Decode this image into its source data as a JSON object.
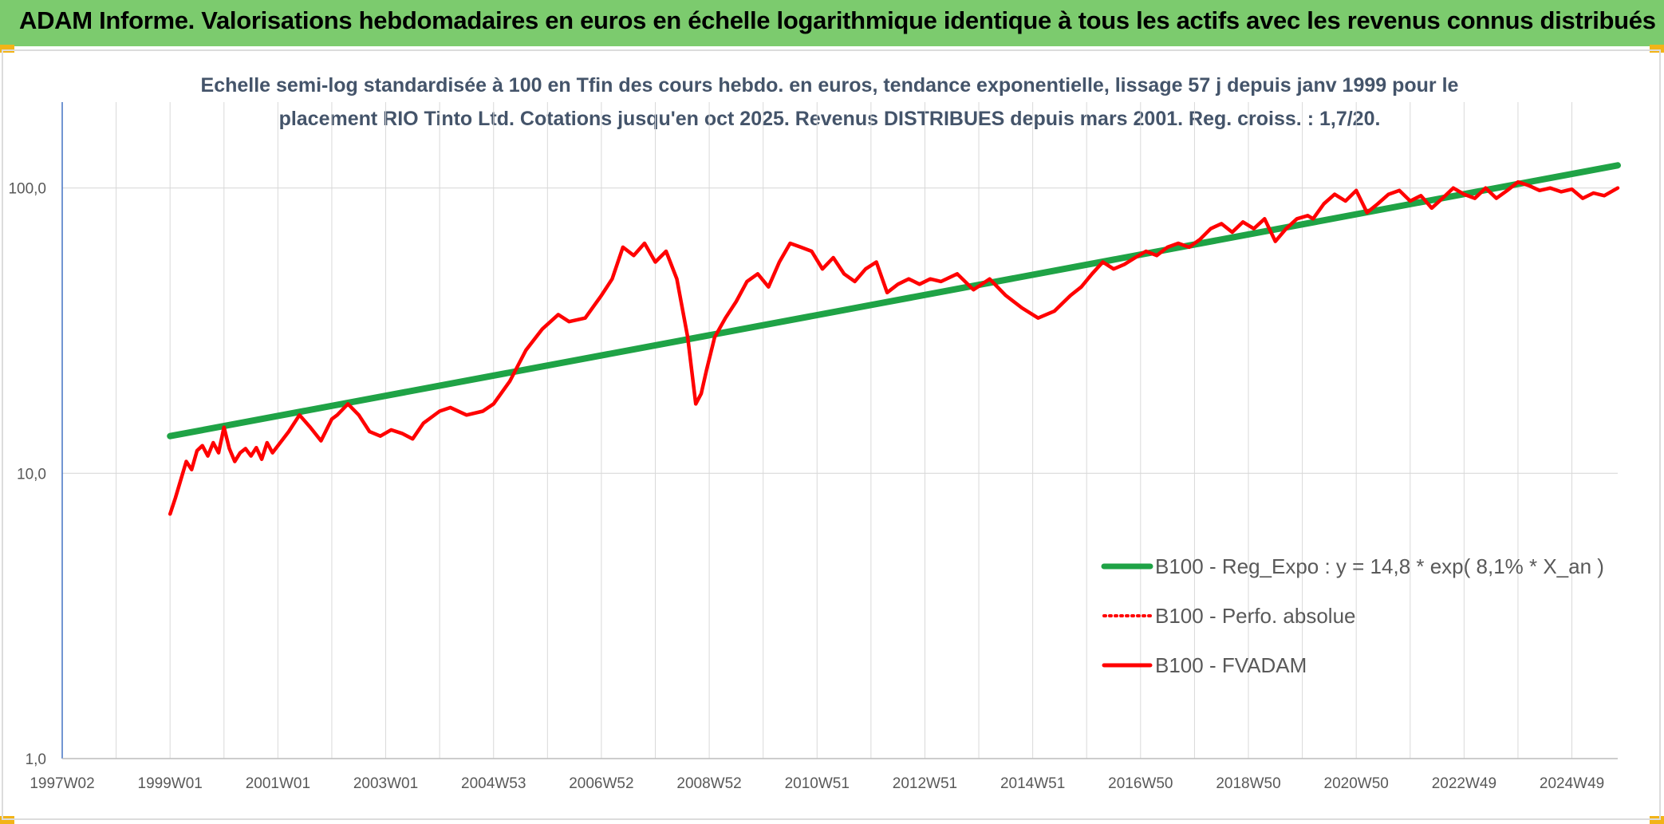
{
  "header": {
    "title": "ADAM Informe. Valorisations hebdomadaires en euros en échelle logarithmique identique à tous les actifs avec les revenus connus distribués"
  },
  "chart_data": {
    "type": "line",
    "title_lines": [
      "Echelle semi-log standardisée à 100 en Tfin des cours hebdo. en euros, tendance exponentielle, lissage 57 j depuis janv 1999 pour le",
      "placement RIO Tinto Ltd. Cotations jusqu'en oct 2025. Revenus DISTRIBUES depuis mars 2001. Reg. croiss. : 1,7/20."
    ],
    "y_scale": "log",
    "ylim": [
      1,
      200
    ],
    "y_ticks": [
      1,
      10,
      100
    ],
    "y_tick_labels": [
      "1,0",
      "10,0",
      "100,0"
    ],
    "xlim": [
      1997.0,
      2025.85
    ],
    "x_ticks": [
      1997.0,
      1999.0,
      2001.0,
      2003.0,
      2005.0,
      2007.0,
      2009.0,
      2011.0,
      2013.0,
      2015.0,
      2017.0,
      2019.0,
      2021.0,
      2023.0,
      2025.0
    ],
    "x_tick_labels": [
      "1997W02",
      "1999W01",
      "2001W01",
      "2003W01",
      "2004W53",
      "2006W52",
      "2008W52",
      "2010W51",
      "2012W51",
      "2014W51",
      "2016W50",
      "2018W50",
      "2020W50",
      "2022W49",
      "2024W49"
    ],
    "grid": true,
    "legend_position": "bottom-right",
    "series": [
      {
        "name": "B100 - Reg_Expo : y = 14,8 * exp( 8,1% *  X_an )",
        "color": "#1fa346",
        "style": "solid",
        "x": [
          1999.0,
          2025.85
        ],
        "y": [
          13.5,
          120
        ]
      },
      {
        "name": "B100 - Perfo. absolue",
        "color": "#ff0000",
        "style": "dotted",
        "x": [],
        "y": []
      },
      {
        "name": "B100 - FVADAM",
        "color": "#ff0000",
        "style": "solid",
        "x": [
          1999.0,
          1999.1,
          1999.2,
          1999.3,
          1999.4,
          1999.5,
          1999.6,
          1999.7,
          1999.8,
          1999.9,
          2000.0,
          2000.1,
          2000.2,
          2000.3,
          2000.4,
          2000.5,
          2000.6,
          2000.7,
          2000.8,
          2000.9,
          2001.0,
          2001.2,
          2001.4,
          2001.6,
          2001.8,
          2002.0,
          2002.1,
          2002.3,
          2002.5,
          2002.7,
          2002.9,
          2003.1,
          2003.3,
          2003.5,
          2003.7,
          2004.0,
          2004.2,
          2004.5,
          2004.8,
          2005.0,
          2005.3,
          2005.6,
          2005.9,
          2006.2,
          2006.4,
          2006.7,
          2007.0,
          2007.2,
          2007.4,
          2007.6,
          2007.8,
          2008.0,
          2008.2,
          2008.4,
          2008.6,
          2008.75,
          2008.85,
          2008.95,
          2009.1,
          2009.3,
          2009.5,
          2009.7,
          2009.9,
          2010.1,
          2010.3,
          2010.5,
          2010.7,
          2010.9,
          2011.1,
          2011.3,
          2011.5,
          2011.7,
          2011.9,
          2012.1,
          2012.3,
          2012.5,
          2012.7,
          2012.9,
          2013.1,
          2013.3,
          2013.6,
          2013.9,
          2014.2,
          2014.5,
          2014.8,
          2015.1,
          2015.4,
          2015.7,
          2015.9,
          2016.1,
          2016.3,
          2016.5,
          2016.7,
          2016.9,
          2017.1,
          2017.3,
          2017.5,
          2017.7,
          2017.9,
          2018.1,
          2018.3,
          2018.5,
          2018.7,
          2018.9,
          2019.1,
          2019.3,
          2019.5,
          2019.7,
          2019.9,
          2020.1,
          2020.2,
          2020.4,
          2020.6,
          2020.8,
          2021.0,
          2021.2,
          2021.4,
          2021.6,
          2021.8,
          2022.0,
          2022.2,
          2022.4,
          2022.6,
          2022.8,
          2023.0,
          2023.2,
          2023.4,
          2023.6,
          2023.8,
          2024.0,
          2024.2,
          2024.4,
          2024.6,
          2024.8,
          2025.0,
          2025.2,
          2025.4,
          2025.6,
          2025.85
        ],
        "y": [
          7.2,
          8.2,
          9.5,
          11.0,
          10.3,
          12.0,
          12.5,
          11.5,
          12.8,
          11.8,
          14.5,
          12.2,
          11.0,
          11.8,
          12.2,
          11.5,
          12.3,
          11.2,
          12.8,
          11.8,
          12.5,
          14.0,
          16.0,
          14.5,
          13.0,
          15.5,
          16.0,
          17.5,
          16.0,
          14.0,
          13.5,
          14.2,
          13.8,
          13.2,
          15.0,
          16.5,
          17.0,
          16.0,
          16.5,
          17.5,
          21.0,
          27.0,
          32.0,
          36.0,
          34.0,
          35.0,
          42.0,
          48.0,
          62.0,
          58.0,
          64.0,
          55.0,
          60.0,
          48.0,
          30.0,
          17.5,
          19.0,
          23.0,
          30.0,
          35.0,
          40.0,
          47.0,
          50.0,
          45.0,
          55.0,
          64.0,
          62.0,
          60.0,
          52.0,
          57.0,
          50.0,
          47.0,
          52.0,
          55.0,
          43.0,
          46.0,
          48.0,
          46.0,
          48.0,
          47.0,
          50.0,
          44.0,
          48.0,
          42.0,
          38.0,
          35.0,
          37.0,
          42.0,
          45.0,
          50.0,
          55.0,
          52.0,
          54.0,
          57.0,
          60.0,
          58.0,
          62.0,
          64.0,
          62.0,
          66.0,
          72.0,
          75.0,
          70.0,
          76.0,
          72.0,
          78.0,
          65.0,
          72.0,
          78.0,
          80.0,
          78.0,
          88.0,
          95.0,
          90.0,
          98.0,
          82.0,
          88.0,
          95.0,
          98.0,
          90.0,
          94.0,
          85.0,
          92.0,
          100.0,
          95.0,
          92.0,
          100.0,
          92.0,
          98.0,
          105.0,
          102.0,
          98.0,
          100.0,
          97.0,
          99.0,
          92.0,
          96.0,
          94.0,
          100.0
        ]
      }
    ]
  }
}
